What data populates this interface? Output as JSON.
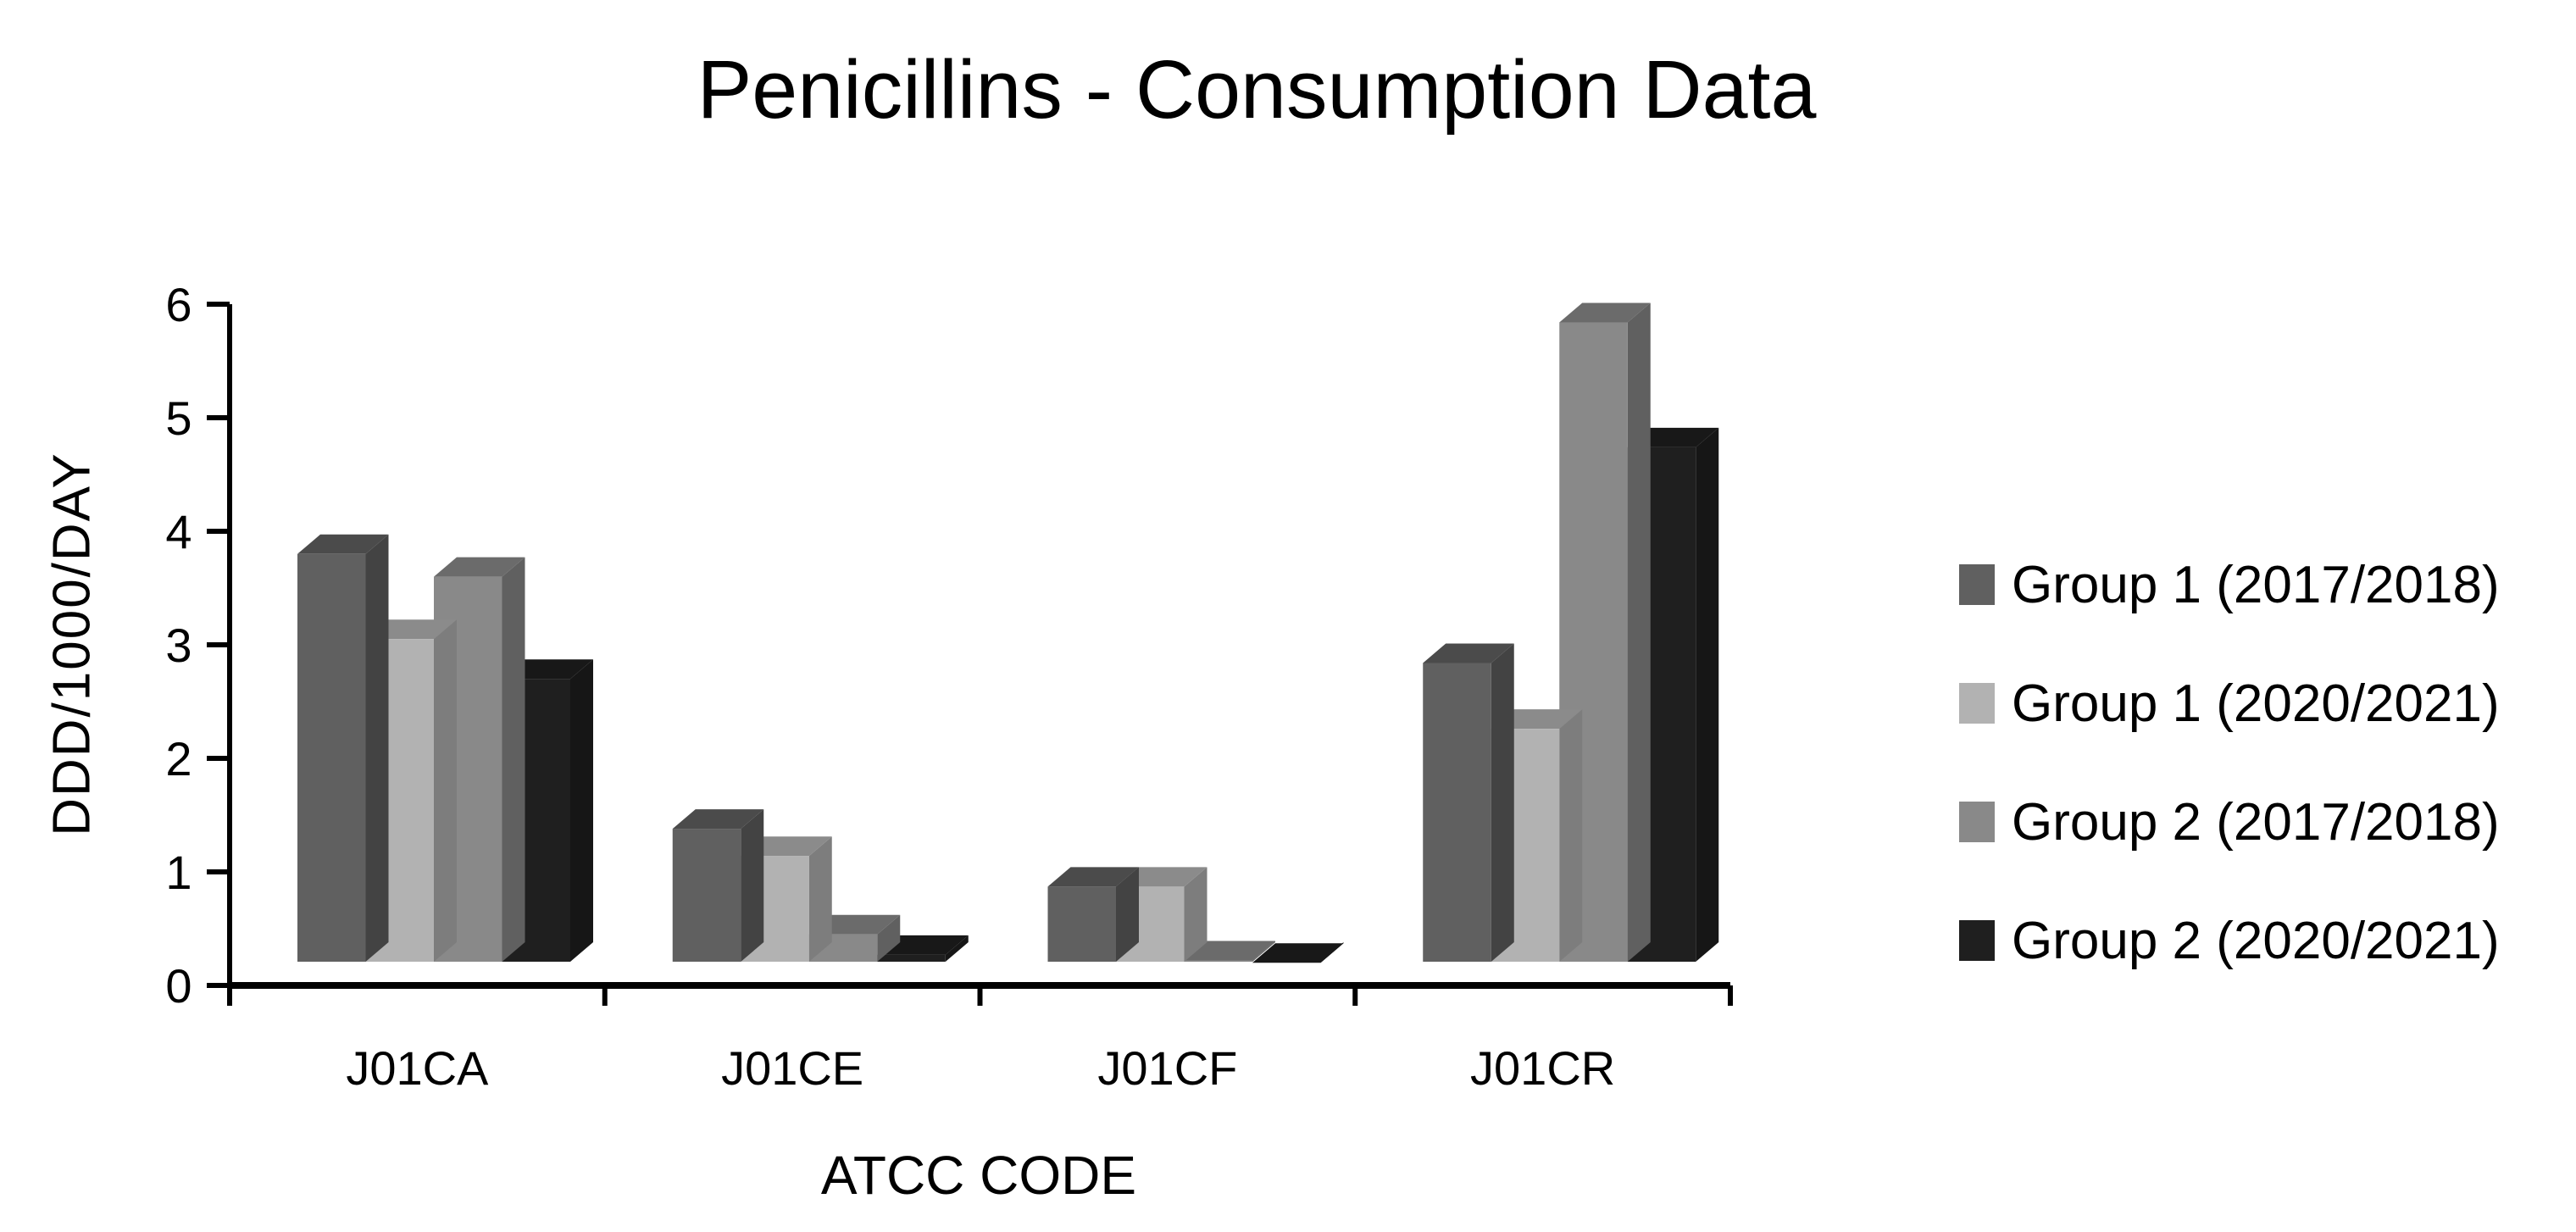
{
  "chart_data": {
    "type": "bar",
    "variant": "3d-clustered-column",
    "title": "Penicillins - Consumption Data",
    "xlabel": "ATCC CODE",
    "ylabel": "DDD/1000/DAY",
    "ylim": [
      0,
      6
    ],
    "yticks": [
      0,
      1,
      2,
      3,
      4,
      5,
      6
    ],
    "grid": false,
    "legend_position": "right",
    "categories": [
      "J01CA",
      "J01CE",
      "J01CF",
      "J01CR"
    ],
    "series": [
      {
        "name": "Group 1 (2017/2018)",
        "color": "#606060",
        "values": [
          3.8,
          1.38,
          0.87,
          2.84
        ]
      },
      {
        "name": "Group 1 (2020/2021)",
        "color": "#b2b2b2",
        "values": [
          3.05,
          1.14,
          0.87,
          2.26
        ]
      },
      {
        "name": "Group 2 (2017/2018)",
        "color": "#898989",
        "values": [
          3.6,
          0.45,
          0.22,
          5.84
        ]
      },
      {
        "name": "Group 2 (2020/2021)",
        "color": "#1f1f1f",
        "values": [
          2.7,
          0.27,
          0.2,
          4.74
        ]
      }
    ]
  }
}
